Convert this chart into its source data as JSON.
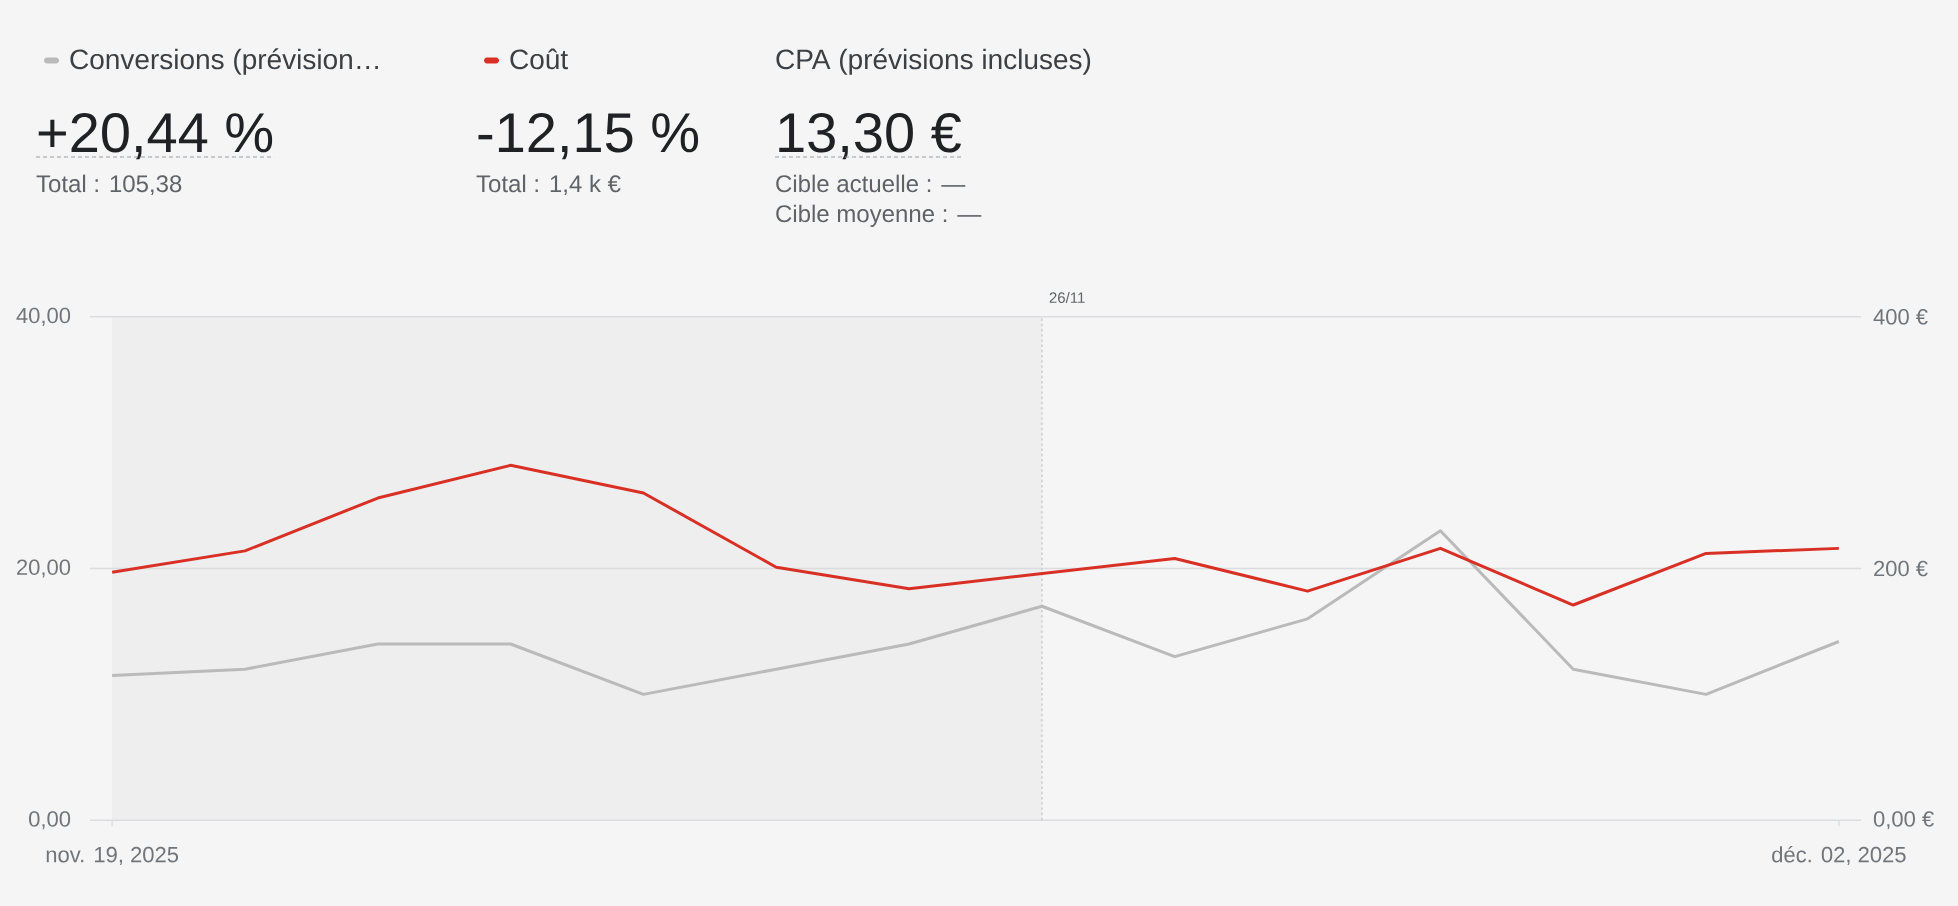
{
  "chart_data": {
    "type": "line",
    "x": [
      "2025-11-19",
      "2025-11-20",
      "2025-11-21",
      "2025-11-22",
      "2025-11-23",
      "2025-11-24",
      "2025-11-25",
      "2025-11-26",
      "2025-11-27",
      "2025-11-28",
      "2025-11-29",
      "2025-11-30",
      "2025-12-01",
      "2025-12-02"
    ],
    "xlim": [
      "2025-11-18T20:00",
      "2025-12-02T04:00"
    ],
    "xticks": [
      {
        "value": "2025-11-19",
        "label": "nov. 19, 2025"
      },
      {
        "value": "2025-12-02",
        "label": "déc. 02, 2025"
      }
    ],
    "ylim": [
      0,
      40
    ],
    "yticks": [
      {
        "value": 0,
        "label": "0,00"
      },
      {
        "value": 20,
        "label": "20,00"
      },
      {
        "value": 40,
        "label": "40,00"
      }
    ],
    "y2lim": [
      0,
      400
    ],
    "y2ticks": [
      {
        "value": 0,
        "label": "0,00 €"
      },
      {
        "value": 200,
        "label": "200 €"
      },
      {
        "value": 400,
        "label": "400 €"
      }
    ],
    "series": [
      {
        "name": "Conversions (prévision…",
        "color": "#bababa",
        "values": [
          11.5,
          12,
          14,
          14,
          10,
          12,
          14,
          17,
          13,
          16,
          23,
          12,
          10,
          14.2
        ]
      },
      {
        "name": "Coût",
        "color": "#d93025",
        "axis": "y2",
        "values": [
          197,
          214,
          256,
          282,
          260,
          201,
          184,
          196,
          208,
          182,
          216,
          171,
          212,
          216
        ]
      }
    ],
    "ref_lines": [
      {
        "axis": "x",
        "value": "2025-11-26",
        "label": "26/11",
        "color": "#cfcfcf",
        "line_style": "dotted"
      }
    ],
    "bands": [
      {
        "axis": "x",
        "from": "2025-11-19",
        "to": "2025-11-26",
        "color": "#eeeeee"
      }
    ],
    "annotations": [
      "+20,44 %",
      "Total : 105,38",
      "-12,15 %",
      "Total : 1,4 k €",
      "CPA (prévisions incluses)",
      "13,30 €",
      "Cible actuelle : —",
      "Cible moyenne : —"
    ],
    "grid": "y",
    "legend": "top left",
    "line_style": "solid"
  }
}
